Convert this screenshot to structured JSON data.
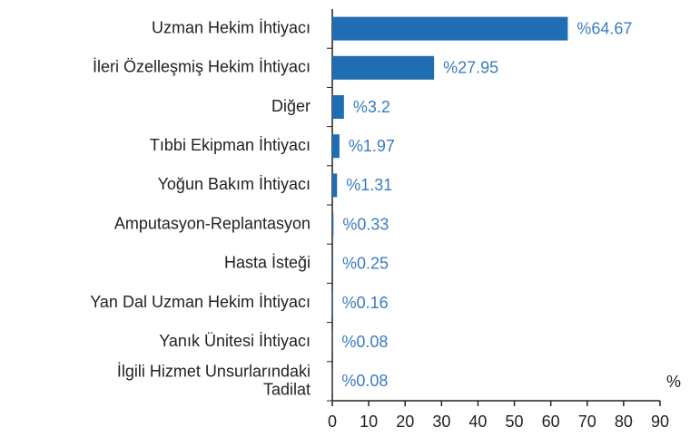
{
  "chart_data": {
    "type": "barh",
    "categories": [
      "Uzman Hekim İhtiyacı",
      "İleri Özelleşmiş Hekim İhtiyacı",
      "Diğer",
      "Tıbbi Ekipman İhtiyacı",
      "Yoğun Bakım İhtiyacı",
      "Amputasyon-Replantasyon",
      "Hasta İsteği",
      "Yan Dal Uzman Hekim İhtiyacı",
      "Yanık Ünitesi İhtiyacı",
      "İlgili Hizmet Unsurlarındaki\nTadilat"
    ],
    "values": [
      64.67,
      27.95,
      3.2,
      1.97,
      1.31,
      0.33,
      0.25,
      0.16,
      0.08,
      0.08
    ],
    "value_labels": [
      "%64.67",
      "%27.95",
      "%3.2",
      "%1.97",
      "%1.31",
      "%0.33",
      "%0.25",
      "%0.16",
      "%0.08",
      "%0.08"
    ],
    "color": "#1f6db3",
    "xlabel": "%",
    "xlim": [
      0,
      90
    ],
    "xticks": [
      0,
      10,
      20,
      30,
      40,
      50,
      60,
      70,
      80,
      90
    ]
  }
}
